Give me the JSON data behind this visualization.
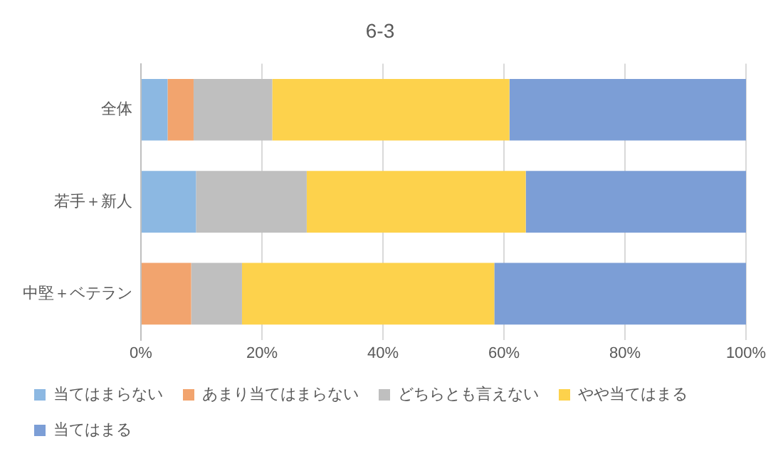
{
  "chart_data": {
    "type": "bar",
    "title": "6-3",
    "orientation": "horizontal",
    "stacked": true,
    "categories": [
      "全体",
      "若手＋新人",
      "中堅＋ベテラン"
    ],
    "series": [
      {
        "name": "当てはまらない",
        "color": "#8cb8e2",
        "values": [
          4.4,
          9.1,
          0
        ]
      },
      {
        "name": "あまり当てはまらない",
        "color": "#f2a46e",
        "values": [
          4.3,
          0,
          8.3
        ]
      },
      {
        "name": "どちらとも言えない",
        "color": "#bfbfbf",
        "values": [
          13.0,
          18.3,
          8.4
        ]
      },
      {
        "name": "やや当てはまる",
        "color": "#fdd24c",
        "values": [
          39.2,
          36.2,
          41.7
        ]
      },
      {
        "name": "当てはまる",
        "color": "#7c9ed6",
        "values": [
          39.1,
          36.4,
          41.6
        ]
      }
    ],
    "xlim": [
      0,
      100
    ],
    "xticks": [
      {
        "value": 0,
        "label": "0%"
      },
      {
        "value": 20,
        "label": "20%"
      },
      {
        "value": 40,
        "label": "40%"
      },
      {
        "value": 60,
        "label": "60%"
      },
      {
        "value": 80,
        "label": "80%"
      },
      {
        "value": 100,
        "label": "100%"
      }
    ],
    "grid": "x",
    "legend": "bottom"
  }
}
